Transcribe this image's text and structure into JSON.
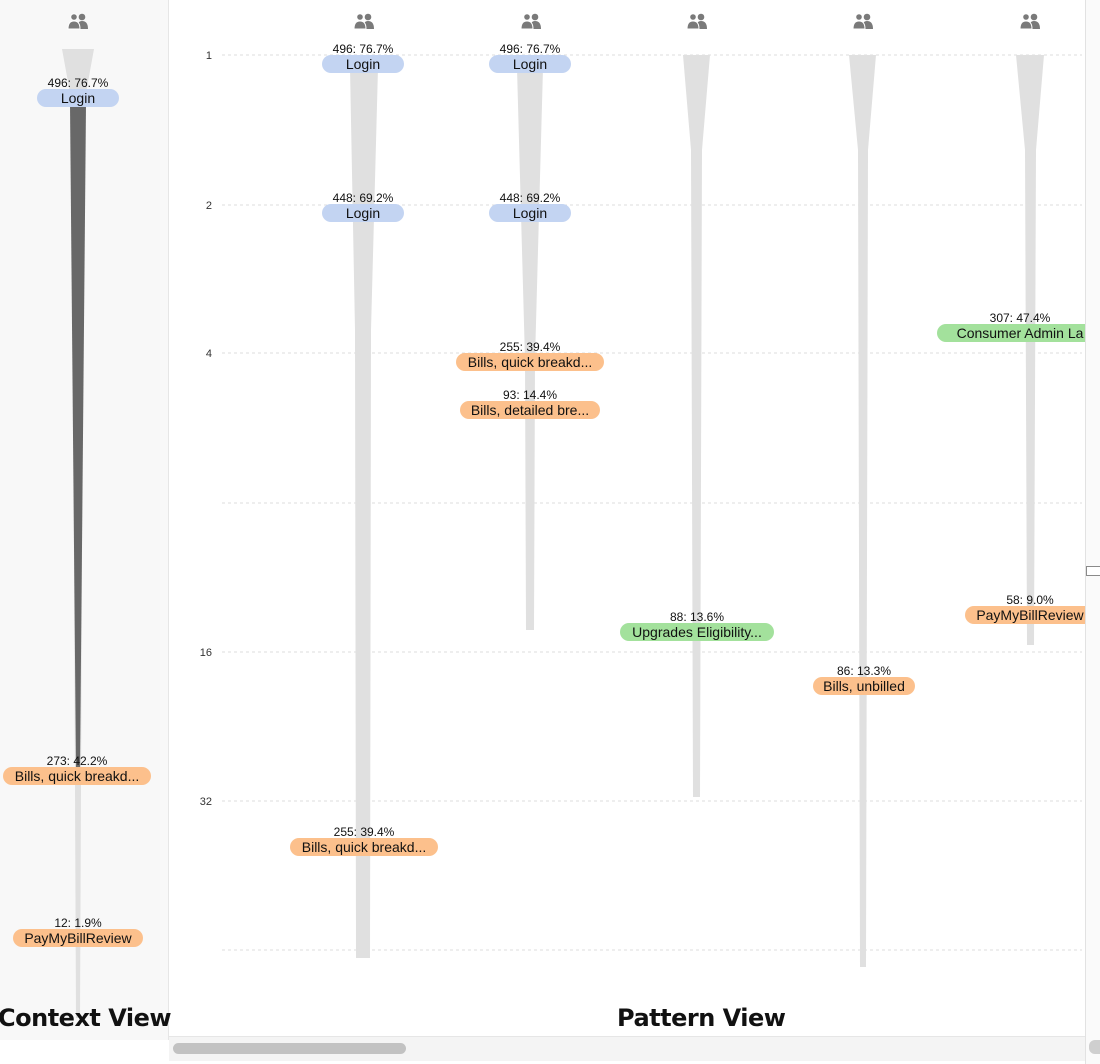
{
  "titles": {
    "context": "Context View",
    "pattern": "Pattern View"
  },
  "colors": {
    "blue": "#c3d4f2",
    "orange": "#fcc08c",
    "green": "#a3e19c",
    "flow": "#e0e0e0",
    "flow_dark": "#686868"
  },
  "icon": "users-icon",
  "y_ticks": [
    {
      "label": "1",
      "value": 1
    },
    {
      "label": "2",
      "value": 2
    },
    {
      "label": "4",
      "value": 4
    },
    {
      "label": "16",
      "value": 16
    },
    {
      "label": "32",
      "value": 32
    }
  ],
  "columns": [
    {
      "id": "context",
      "nodes": [
        {
          "stat": "496: 76.7%",
          "label": "Login",
          "color": "blue"
        },
        {
          "stat": "273: 42.2%",
          "label": "Bills, quick breakd...",
          "color": "orange"
        },
        {
          "stat": "12: 1.9%",
          "label": "PayMyBillReview",
          "color": "orange"
        }
      ]
    },
    {
      "id": "pattern-1",
      "nodes": [
        {
          "stat": "496: 76.7%",
          "label": "Login",
          "color": "blue"
        },
        {
          "stat": "448: 69.2%",
          "label": "Login",
          "color": "blue"
        },
        {
          "stat": "255: 39.4%",
          "label": "Bills, quick breakd...",
          "color": "orange"
        }
      ]
    },
    {
      "id": "pattern-2",
      "nodes": [
        {
          "stat": "496: 76.7%",
          "label": "Login",
          "color": "blue"
        },
        {
          "stat": "448: 69.2%",
          "label": "Login",
          "color": "blue"
        },
        {
          "stat": "255: 39.4%",
          "label": "Bills, quick breakd...",
          "color": "orange"
        },
        {
          "stat": "93: 14.4%",
          "label": "Bills, detailed bre...",
          "color": "orange"
        }
      ]
    },
    {
      "id": "pattern-3",
      "nodes": [
        {
          "stat": "88: 13.6%",
          "label": "Upgrades Eligibility...",
          "color": "green"
        }
      ]
    },
    {
      "id": "pattern-4",
      "nodes": [
        {
          "stat": "86: 13.3%",
          "label": "Bills, unbilled",
          "color": "orange"
        }
      ]
    },
    {
      "id": "pattern-5",
      "nodes": [
        {
          "stat": "307: 47.4%",
          "label": "Consumer Admin La",
          "color": "green"
        },
        {
          "stat": "58: 9.0%",
          "label": "PayMyBillReview",
          "color": "orange"
        }
      ]
    }
  ]
}
